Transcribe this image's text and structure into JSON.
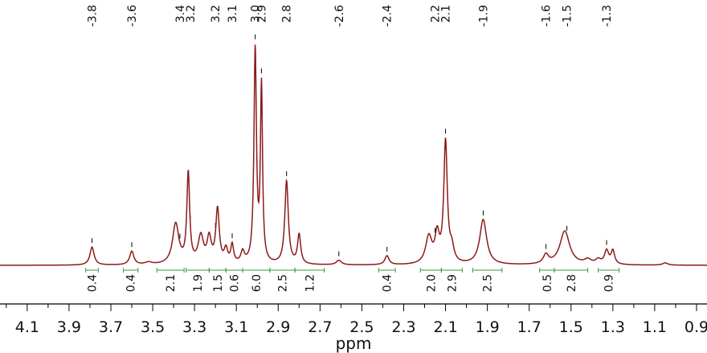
{
  "chart_data": {
    "type": "line",
    "xlabel": "ppm",
    "x_reversed": true,
    "xlim": [
      4.23,
      0.85
    ],
    "ylim": [
      0,
      1
    ],
    "x_ticks": [
      "4.1",
      "3.9",
      "3.7",
      "3.5",
      "3.3",
      "3.1",
      "2.9",
      "2.7",
      "2.5",
      "2.3",
      "2.1",
      "1.9",
      "1.7",
      "1.5",
      "1.3",
      "1.1",
      "0.9"
    ],
    "peak_labels": [
      {
        "label": "-3.8",
        "ppm": 3.79
      },
      {
        "label": "-3.6",
        "ppm": 3.6
      },
      {
        "label": "3.4",
        "ppm": 3.37
      },
      {
        "label": "3.2",
        "ppm": 3.32
      },
      {
        "label": "3.2",
        "ppm": 3.2
      },
      {
        "label": "3.1",
        "ppm": 3.12
      },
      {
        "label": "3.0",
        "ppm": 3.01
      },
      {
        "label": "2.9",
        "ppm": 2.98
      },
      {
        "label": "2.8",
        "ppm": 2.86
      },
      {
        "label": "-2.6",
        "ppm": 2.61
      },
      {
        "label": "-2.4",
        "ppm": 2.38
      },
      {
        "label": "2.2",
        "ppm": 2.15
      },
      {
        "label": "2.1",
        "ppm": 2.1
      },
      {
        "label": "-1.9",
        "ppm": 1.92
      },
      {
        "label": "-1.6",
        "ppm": 1.62
      },
      {
        "label": "-1.5",
        "ppm": 1.52
      },
      {
        "label": "-1.3",
        "ppm": 1.33
      }
    ],
    "integrals": [
      {
        "value": "0.4",
        "from": 3.82,
        "to": 3.76
      },
      {
        "value": "0.4",
        "from": 3.64,
        "to": 3.57
      },
      {
        "value": "2.1",
        "from": 3.48,
        "to": 3.35
      },
      {
        "value": "1.9",
        "from": 3.34,
        "to": 3.23
      },
      {
        "value": "1.5",
        "from": 3.23,
        "to": 3.15
      },
      {
        "value": "0.6",
        "from": 3.15,
        "to": 3.07
      },
      {
        "value": "6.0",
        "from": 3.07,
        "to": 2.94
      },
      {
        "value": "2.5",
        "from": 2.94,
        "to": 2.82
      },
      {
        "value": "1.2",
        "from": 2.82,
        "to": 2.68
      },
      {
        "value": "0.4",
        "from": 2.42,
        "to": 2.34
      },
      {
        "value": "2.0",
        "from": 2.22,
        "to": 2.12
      },
      {
        "value": "2.9",
        "from": 2.12,
        "to": 2.02
      },
      {
        "value": "2.5",
        "from": 1.97,
        "to": 1.83
      },
      {
        "value": "0.5",
        "from": 1.65,
        "to": 1.58
      },
      {
        "value": "2.8",
        "from": 1.58,
        "to": 1.42
      },
      {
        "value": "0.9",
        "from": 1.37,
        "to": 1.27
      }
    ],
    "peaks": [
      {
        "ppm": 3.79,
        "height": 0.08,
        "width": 0.012
      },
      {
        "ppm": 3.6,
        "height": 0.06,
        "width": 0.012
      },
      {
        "ppm": 3.52,
        "height": 0.01,
        "width": 0.02
      },
      {
        "ppm": 3.39,
        "height": 0.18,
        "width": 0.018
      },
      {
        "ppm": 3.33,
        "height": 0.4,
        "width": 0.008
      },
      {
        "ppm": 3.27,
        "height": 0.12,
        "width": 0.015
      },
      {
        "ppm": 3.23,
        "height": 0.11,
        "width": 0.012
      },
      {
        "ppm": 3.19,
        "height": 0.24,
        "width": 0.01
      },
      {
        "ppm": 3.15,
        "height": 0.06,
        "width": 0.01
      },
      {
        "ppm": 3.12,
        "height": 0.08,
        "width": 0.008
      },
      {
        "ppm": 3.07,
        "height": 0.05,
        "width": 0.01
      },
      {
        "ppm": 3.01,
        "height": 0.95,
        "width": 0.007
      },
      {
        "ppm": 2.98,
        "height": 0.78,
        "width": 0.006
      },
      {
        "ppm": 2.86,
        "height": 0.37,
        "width": 0.01
      },
      {
        "ppm": 2.8,
        "height": 0.13,
        "width": 0.009
      },
      {
        "ppm": 2.61,
        "height": 0.02,
        "width": 0.015
      },
      {
        "ppm": 2.38,
        "height": 0.04,
        "width": 0.012
      },
      {
        "ppm": 2.18,
        "height": 0.12,
        "width": 0.018
      },
      {
        "ppm": 2.14,
        "height": 0.12,
        "width": 0.012
      },
      {
        "ppm": 2.1,
        "height": 0.54,
        "width": 0.01
      },
      {
        "ppm": 2.07,
        "height": 0.06,
        "width": 0.012
      },
      {
        "ppm": 1.92,
        "height": 0.2,
        "width": 0.02
      },
      {
        "ppm": 1.62,
        "height": 0.04,
        "width": 0.015
      },
      {
        "ppm": 1.53,
        "height": 0.15,
        "width": 0.028
      },
      {
        "ppm": 1.42,
        "height": 0.02,
        "width": 0.02
      },
      {
        "ppm": 1.37,
        "height": 0.02,
        "width": 0.015
      },
      {
        "ppm": 1.33,
        "height": 0.06,
        "width": 0.012
      },
      {
        "ppm": 1.3,
        "height": 0.06,
        "width": 0.01
      },
      {
        "ppm": 1.05,
        "height": 0.01,
        "width": 0.015
      }
    ],
    "colors": {
      "spectrum": "#8b1a1a",
      "integral": "#3a9a3a",
      "axis": "#000000"
    }
  }
}
